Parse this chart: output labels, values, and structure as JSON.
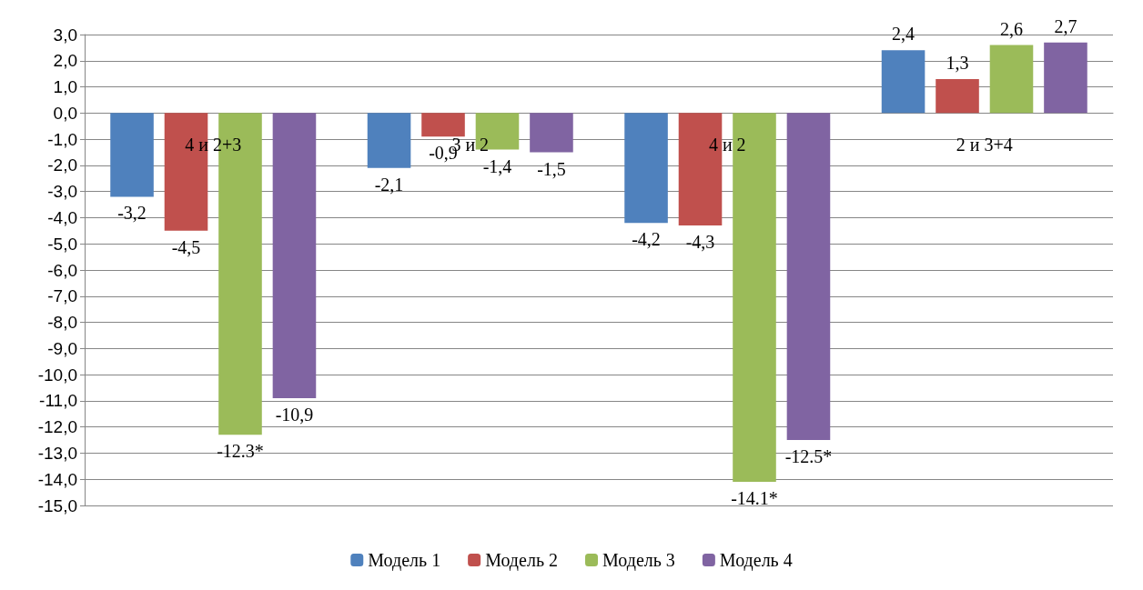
{
  "chart_data": {
    "type": "bar",
    "categories": [
      null,
      null,
      null,
      null
    ],
    "series": [
      {
        "name": "Модель 1",
        "color": "#4f81bd",
        "values": [
          -3.2,
          -2.1,
          -4.2,
          2.4
        ],
        "value_labels": [
          "-3,2",
          "-2,1",
          "-4,2",
          "2,4"
        ]
      },
      {
        "name": "Модель 2",
        "color": "#c0504d",
        "values": [
          -4.5,
          -0.9,
          -4.3,
          1.3
        ],
        "value_labels": [
          "-4,5",
          "-0,9",
          "-4,3",
          "1,3"
        ]
      },
      {
        "name": "Модель 3",
        "color": "#9bbb59",
        "values": [
          -12.3,
          -1.4,
          -14.1,
          2.6
        ],
        "value_labels": [
          "-12.3*",
          "-1,4",
          "-14.1*",
          "2,6"
        ]
      },
      {
        "name": "Модель 4",
        "color": "#8064a2",
        "values": [
          -10.9,
          -1.5,
          -12.5,
          2.7
        ],
        "value_labels": [
          "-10,9",
          "-1,5",
          "-12.5*",
          "2,7"
        ]
      }
    ],
    "annotations": [
      "4 и 2+3",
      "3 и 2",
      "4 и 2",
      "2 и 3+4"
    ],
    "ylim": [
      -15,
      3
    ],
    "yticks": [
      {
        "value": 3,
        "label": "3,0"
      },
      {
        "value": 2,
        "label": "2,0"
      },
      {
        "value": 1,
        "label": "1,0"
      },
      {
        "value": 0,
        "label": "0,0"
      },
      {
        "value": -1,
        "label": "-1,0"
      },
      {
        "value": -2,
        "label": "-2,0"
      },
      {
        "value": -3,
        "label": "-3,0"
      },
      {
        "value": -4,
        "label": "-4,0"
      },
      {
        "value": -5,
        "label": "-5,0"
      },
      {
        "value": -6,
        "label": "-6,0"
      },
      {
        "value": -7,
        "label": "-7,0"
      },
      {
        "value": -8,
        "label": "-8,0"
      },
      {
        "value": -9,
        "label": "-9,0"
      },
      {
        "value": -10,
        "label": "-10,0"
      },
      {
        "value": -11,
        "label": "-11,0"
      },
      {
        "value": -12,
        "label": "-12,0"
      },
      {
        "value": -13,
        "label": "-13,0"
      },
      {
        "value": -14,
        "label": "-14,0"
      },
      {
        "value": -15,
        "label": "-15,0"
      }
    ],
    "grid": "y",
    "legend": "bottom"
  }
}
